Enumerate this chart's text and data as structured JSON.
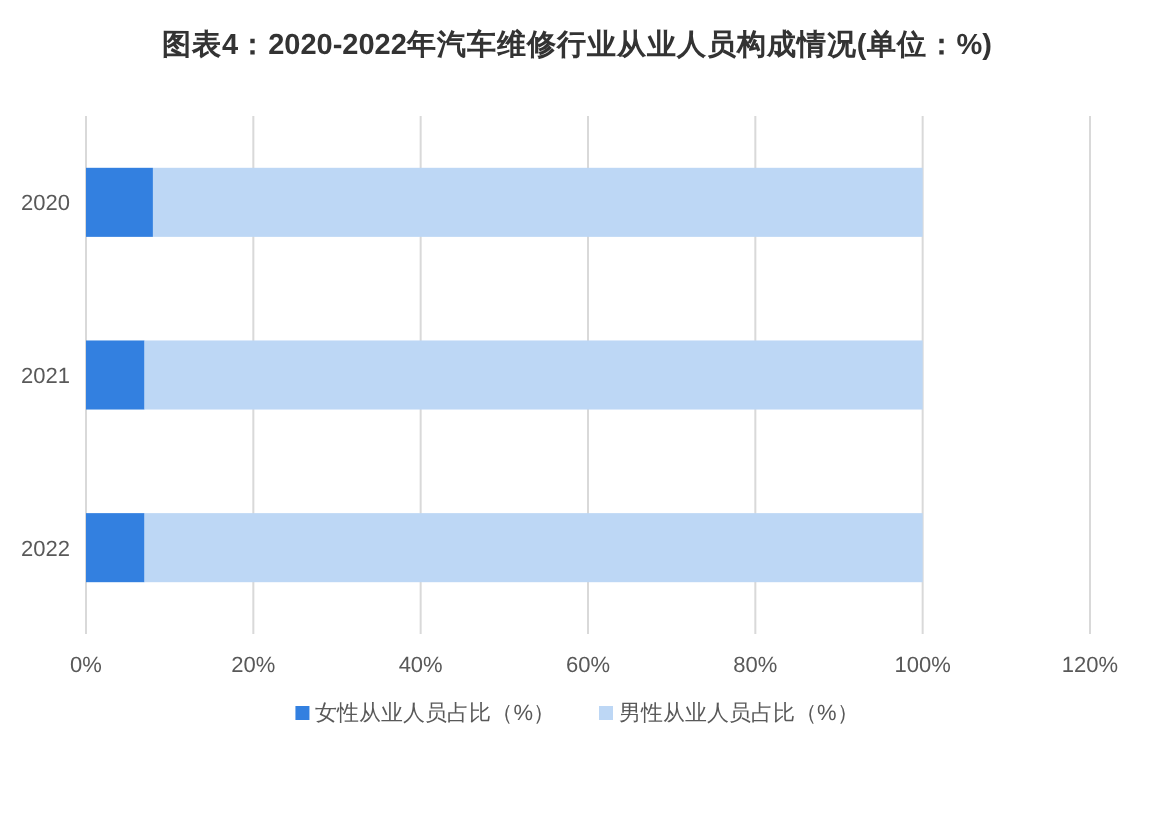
{
  "chart_data": {
    "type": "bar",
    "title": "图表4：2020-2022年汽车维修行业从业人员构成情况(单位：%)",
    "categories": [
      "2020",
      "2021",
      "2022"
    ],
    "orientation": "horizontal",
    "stacked": true,
    "series": [
      {
        "name": "女性从业人员占比（%）",
        "color": "#3380e0",
        "values": [
          8,
          7,
          7
        ]
      },
      {
        "name": "男性从业人员占比（%）",
        "color": "#bdd7f5",
        "values": [
          92,
          93,
          93
        ]
      }
    ],
    "xlim": [
      0,
      120
    ],
    "xticks": [
      {
        "value": 0,
        "label": "0%"
      },
      {
        "value": 20,
        "label": "20%"
      },
      {
        "value": 40,
        "label": "40%"
      },
      {
        "value": 60,
        "label": "60%"
      },
      {
        "value": 80,
        "label": "80%"
      },
      {
        "value": 100,
        "label": "100%"
      },
      {
        "value": 120,
        "label": "120%"
      }
    ],
    "grid": "x",
    "legend": "bottom"
  }
}
